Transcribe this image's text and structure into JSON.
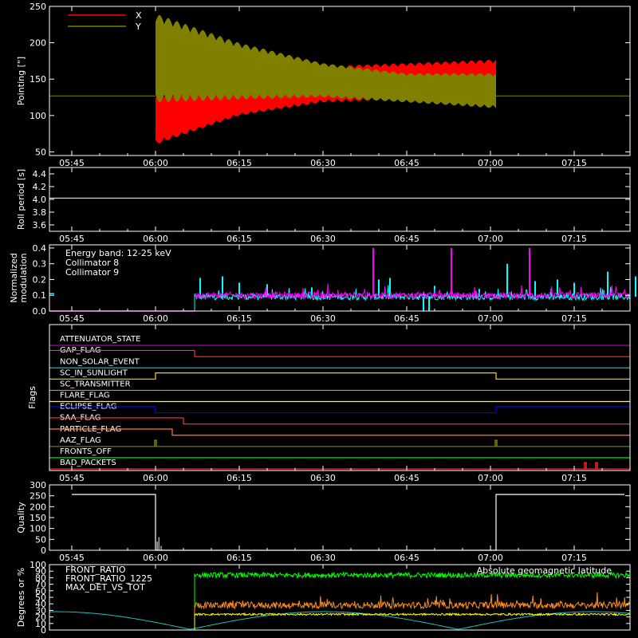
{
  "chart_data": [
    {
      "id": "pointing",
      "type": "line",
      "ylabel": "Pointing [\"]",
      "ylim": [
        45,
        250
      ],
      "yticks": [
        50,
        100,
        150,
        200,
        250
      ],
      "x_ticks": [
        "05:45",
        "06:00",
        "06:15",
        "06:30",
        "06:45",
        "07:00",
        "07:15"
      ],
      "series": [
        {
          "name": "X",
          "color": "#ff0000"
        },
        {
          "name": "Y",
          "color": "#808000"
        }
      ],
      "baseline": 127,
      "oscillation_start": "06:00",
      "oscillation_end": "07:01",
      "envelope": [
        {
          "t": "06:00",
          "x": [
            60,
            130
          ],
          "y": [
            118,
            240
          ]
        },
        {
          "t": "06:15",
          "x": [
            100,
            138
          ],
          "y": [
            122,
            200
          ]
        },
        {
          "t": "06:30",
          "x": [
            118,
            168
          ],
          "y": [
            125,
            172
          ]
        },
        {
          "t": "06:45",
          "x": [
            122,
            172
          ],
          "y": [
            118,
            158
          ]
        },
        {
          "t": "07:01",
          "x": [
            120,
            177
          ],
          "y": [
            110,
            158
          ]
        }
      ]
    },
    {
      "id": "roll",
      "type": "line",
      "ylabel": "Roll period [s]",
      "ylim": [
        3.5,
        4.5
      ],
      "yticks": [
        "3.6",
        "3.8",
        "4.0",
        "4.2",
        "4.4"
      ],
      "x_ticks": [
        "05:45",
        "06:00",
        "06:15",
        "06:30",
        "06:45",
        "07:00",
        "07:15"
      ],
      "series": [
        {
          "name": "",
          "color": "#ffffff",
          "value": 4.02
        }
      ]
    },
    {
      "id": "modulation",
      "type": "line",
      "ylabel_lines": [
        "Normalized",
        "modulation"
      ],
      "ylim": [
        0,
        0.42
      ],
      "yticks": [
        "0.0",
        "0.1",
        "0.2",
        "0.3",
        "0.4"
      ],
      "x_ticks": [
        "05:45",
        "06:00",
        "06:15",
        "06:30",
        "06:45",
        "07:00",
        "07:15"
      ],
      "legend_title": "Energy band: 12-25 keV",
      "series": [
        {
          "name": "Collimator 8",
          "color": "#00ffff",
          "start": "06:07",
          "base": 0.09,
          "spikes": [
            [
              "06:08",
              0.21
            ],
            [
              "06:12",
              0.22
            ],
            [
              "06:15",
              0.18
            ],
            [
              "06:20",
              0.17
            ],
            [
              "06:28",
              0.15
            ],
            [
              "06:40",
              0.2
            ],
            [
              "06:42",
              0.21
            ],
            [
              "06:50",
              0.16
            ],
            [
              "06:58",
              0.14
            ],
            [
              "07:03",
              0.3
            ],
            [
              "07:08",
              0.19
            ],
            [
              "07:12",
              0.2
            ],
            [
              "07:15",
              0.18
            ],
            [
              "07:21",
              0.25
            ],
            [
              "07:26",
              0.22
            ]
          ],
          "dips": [
            [
              "06:48",
              0.0
            ],
            [
              "06:49",
              0.0
            ]
          ]
        },
        {
          "name": "Collimator 9",
          "color": "#ff00ff",
          "start": "06:07",
          "base": 0.1,
          "spikes": [
            [
              "06:39",
              0.4
            ],
            [
              "06:53",
              0.4
            ],
            [
              "07:07",
              0.4
            ]
          ]
        }
      ],
      "pre_values": {
        "cyan": 0.11,
        "magenta": 0.0
      }
    },
    {
      "id": "flags",
      "type": "line",
      "ylabel": "Flags",
      "x_ticks": [
        "05:45",
        "06:00",
        "06:15",
        "06:30",
        "06:45",
        "07:00",
        "07:15"
      ],
      "flags": [
        {
          "name": "ATTENUATOR_STATE",
          "color": "#c000c0",
          "steps": []
        },
        {
          "name": "GAP_FLAG",
          "color": "#ff3333",
          "steps": [
            [
              "05:45",
              1
            ],
            [
              "06:07",
              0
            ]
          ]
        },
        {
          "name": "NON_SOLAR_EVENT",
          "color": "#00c0c0",
          "steps": []
        },
        {
          "name": "SC_IN_SUNLIGHT",
          "color": "#ffd000",
          "steps": [
            [
              "05:45",
              0
            ],
            [
              "06:00",
              1
            ],
            [
              "07:01",
              0
            ]
          ]
        },
        {
          "name": "SC_TRANSMITTER",
          "color": "#ff7733",
          "steps": []
        },
        {
          "name": "FLARE_FLAG",
          "color": "#ffff00",
          "steps": []
        },
        {
          "name": "ECLIPSE_FLAG",
          "color": "#0000ff",
          "steps": [
            [
              "05:45",
              1
            ],
            [
              "06:00",
              0
            ],
            [
              "07:01",
              1
            ]
          ]
        },
        {
          "name": "SAA_FLAG",
          "color": "#ff3333",
          "steps": [
            [
              "05:45",
              1
            ],
            [
              "06:05",
              0
            ]
          ]
        },
        {
          "name": "PARTICLE_FLAG",
          "color": "#ff7733",
          "steps": [
            [
              "05:45",
              1
            ],
            [
              "06:03",
              0
            ]
          ]
        },
        {
          "name": "AAZ_FLAG",
          "color": "#808000",
          "steps": [],
          "pulses": [
            "06:00",
            "07:01"
          ]
        },
        {
          "name": "FRONTS_OFF",
          "color": "#00ff00",
          "steps": []
        },
        {
          "name": "BAD_PACKETS",
          "color": "#ff2020",
          "steps": [],
          "pulses": [
            "07:17",
            "07:19"
          ]
        }
      ]
    },
    {
      "id": "quality",
      "type": "line",
      "ylabel": "Quality",
      "ylim": [
        0,
        300
      ],
      "yticks": [
        "0",
        "50",
        "100",
        "150",
        "200",
        "250",
        "300"
      ],
      "x_ticks": [
        "05:45",
        "06:00",
        "06:15",
        "06:30",
        "06:45",
        "07:00",
        "07:15"
      ],
      "series": [
        {
          "name": "",
          "color": "#ffffff",
          "points": [
            [
              "05:45",
              256
            ],
            [
              "06:00",
              256
            ],
            [
              "06:00",
              0
            ],
            [
              "07:01",
              0
            ],
            [
              "07:01",
              256
            ],
            [
              "07:24",
              256
            ]
          ]
        }
      ]
    },
    {
      "id": "ratios",
      "type": "line",
      "ylabel": "Degrees or %",
      "ylim": [
        0,
        100
      ],
      "yticks": [
        "0",
        "10",
        "20",
        "30",
        "40",
        "50",
        "60",
        "70",
        "80",
        "90",
        "100"
      ],
      "series": [
        {
          "name": "FRONT_RATIO",
          "color": "#ffff00",
          "start": "06:07",
          "base": 24
        },
        {
          "name": "FRONT_RATIO_1225",
          "color": "#00ff00",
          "start": "06:07",
          "base": 84
        },
        {
          "name": "MAX_DET_VS_TOT",
          "color": "#ff8c1a",
          "start": "06:07",
          "base": 38
        },
        {
          "name": "Absolute geomagnetic latitude",
          "color": "#20c0c0"
        }
      ]
    }
  ]
}
